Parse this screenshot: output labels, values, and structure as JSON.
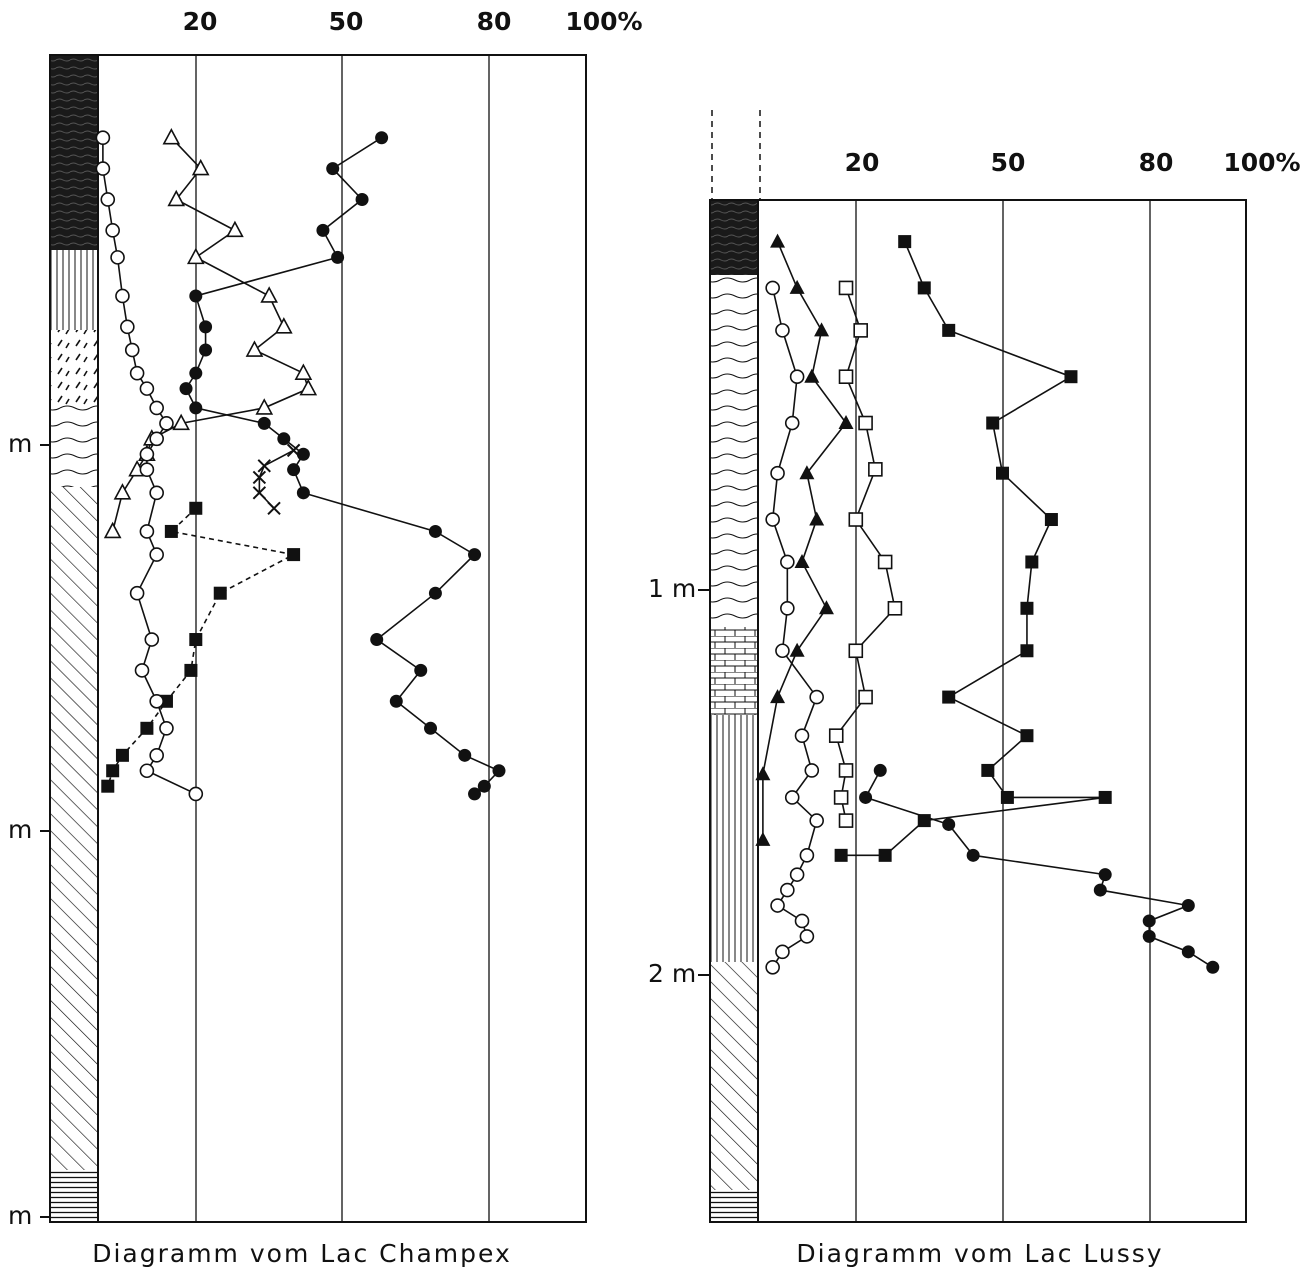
{
  "chart_data": [
    {
      "type": "line",
      "title": "Diagramm vom Lac Champex",
      "x_tick_labels": [
        "20",
        "50",
        "80",
        "100%"
      ],
      "depth_labels": [
        "m",
        "m",
        "m"
      ],
      "xlim": [
        0,
        100
      ],
      "grid": true,
      "series": [
        {
          "style": "filled-circle",
          "line": "solid",
          "points": [
            [
              58,
              0.02
            ],
            [
              48,
              0.1
            ],
            [
              54,
              0.18
            ],
            [
              46,
              0.26
            ],
            [
              49,
              0.33
            ],
            [
              20,
              0.43
            ],
            [
              22,
              0.51
            ],
            [
              22,
              0.57
            ],
            [
              20,
              0.63
            ],
            [
              18,
              0.67
            ],
            [
              20,
              0.72
            ],
            [
              34,
              0.76
            ],
            [
              38,
              0.8
            ],
            [
              42,
              0.84
            ],
            [
              40,
              0.88
            ],
            [
              42,
              0.94
            ],
            [
              69,
              1.04
            ],
            [
              77,
              1.1
            ],
            [
              69,
              1.2
            ],
            [
              57,
              1.32
            ],
            [
              66,
              1.4
            ],
            [
              61,
              1.48
            ],
            [
              68,
              1.55
            ],
            [
              75,
              1.62
            ],
            [
              82,
              1.66
            ],
            [
              79,
              1.7
            ],
            [
              77,
              1.72
            ]
          ]
        },
        {
          "style": "open-triangle",
          "line": "solid",
          "points": [
            [
              15,
              0.02
            ],
            [
              21,
              0.1
            ],
            [
              16,
              0.18
            ],
            [
              28,
              0.26
            ],
            [
              20,
              0.33
            ],
            [
              35,
              0.43
            ],
            [
              38,
              0.51
            ],
            [
              32,
              0.57
            ],
            [
              42,
              0.63
            ],
            [
              43,
              0.67
            ],
            [
              34,
              0.72
            ],
            [
              17,
              0.76
            ],
            [
              11,
              0.8
            ],
            [
              10,
              0.84
            ],
            [
              8,
              0.88
            ],
            [
              5,
              0.94
            ],
            [
              3,
              1.04
            ]
          ]
        },
        {
          "style": "cross",
          "line": "solid",
          "points": [
            [
              40,
              0.83
            ],
            [
              34,
              0.87
            ],
            [
              33,
              0.9
            ],
            [
              33,
              0.94
            ],
            [
              36,
              0.98
            ]
          ]
        },
        {
          "style": "filled-square",
          "line": "dashed",
          "points": [
            [
              20,
              0.98
            ],
            [
              15,
              1.04
            ],
            [
              40,
              1.1
            ],
            [
              25,
              1.2
            ],
            [
              20,
              1.32
            ],
            [
              19,
              1.4
            ],
            [
              14,
              1.48
            ],
            [
              10,
              1.55
            ],
            [
              5,
              1.62
            ],
            [
              3,
              1.66
            ],
            [
              2,
              1.7
            ]
          ]
        },
        {
          "style": "open-circle",
          "line": "solid",
          "points": [
            [
              1,
              0.02
            ],
            [
              1,
              0.1
            ],
            [
              2,
              0.18
            ],
            [
              3,
              0.26
            ],
            [
              4,
              0.33
            ],
            [
              5,
              0.43
            ],
            [
              6,
              0.51
            ],
            [
              7,
              0.57
            ],
            [
              8,
              0.63
            ],
            [
              10,
              0.67
            ],
            [
              12,
              0.72
            ],
            [
              14,
              0.76
            ],
            [
              12,
              0.8
            ],
            [
              10,
              0.84
            ],
            [
              10,
              0.88
            ],
            [
              12,
              0.94
            ],
            [
              10,
              1.04
            ],
            [
              12,
              1.1
            ],
            [
              8,
              1.2
            ],
            [
              11,
              1.32
            ],
            [
              9,
              1.4
            ],
            [
              12,
              1.48
            ],
            [
              14,
              1.55
            ],
            [
              12,
              1.62
            ],
            [
              10,
              1.66
            ],
            [
              20,
              1.72
            ]
          ]
        }
      ]
    },
    {
      "type": "line",
      "title": "Diagramm vom Lac Lussy",
      "x_tick_labels": [
        "20",
        "50",
        "80",
        "100%"
      ],
      "depth_labels": [
        "1 m",
        "2 m"
      ],
      "xlim": [
        0,
        100
      ],
      "grid": true,
      "series": [
        {
          "style": "filled-square",
          "line": "solid",
          "points": [
            [
              30,
              0.1
            ],
            [
              34,
              0.22
            ],
            [
              39,
              0.33
            ],
            [
              64,
              0.45
            ],
            [
              48,
              0.57
            ],
            [
              50,
              0.7
            ],
            [
              60,
              0.82
            ],
            [
              56,
              0.93
            ],
            [
              55,
              1.05
            ],
            [
              55,
              1.16
            ],
            [
              39,
              1.28
            ],
            [
              55,
              1.38
            ],
            [
              47,
              1.47
            ],
            [
              51,
              1.54
            ],
            [
              71,
              1.54
            ],
            [
              34,
              1.6
            ],
            [
              26,
              1.69
            ],
            [
              17,
              1.69
            ]
          ]
        },
        {
          "style": "filled-circle",
          "line": "solid",
          "points": [
            [
              25,
              1.47
            ],
            [
              22,
              1.54
            ],
            [
              39,
              1.61
            ],
            [
              44,
              1.69
            ],
            [
              71,
              1.74
            ],
            [
              70,
              1.78
            ],
            [
              88,
              1.82
            ],
            [
              80,
              1.86
            ],
            [
              80,
              1.9
            ],
            [
              88,
              1.94
            ],
            [
              93,
              1.98
            ]
          ]
        },
        {
          "style": "open-square",
          "line": "solid",
          "points": [
            [
              18,
              0.22
            ],
            [
              21,
              0.33
            ],
            [
              18,
              0.45
            ],
            [
              22,
              0.57
            ],
            [
              24,
              0.69
            ],
            [
              20,
              0.82
            ],
            [
              26,
              0.93
            ],
            [
              28,
              1.05
            ],
            [
              20,
              1.16
            ],
            [
              22,
              1.28
            ],
            [
              16,
              1.38
            ],
            [
              18,
              1.47
            ],
            [
              17,
              1.54
            ],
            [
              18,
              1.6
            ]
          ]
        },
        {
          "style": "open-circle",
          "line": "solid",
          "points": [
            [
              3,
              0.22
            ],
            [
              5,
              0.33
            ],
            [
              8,
              0.45
            ],
            [
              7,
              0.57
            ],
            [
              4,
              0.7
            ],
            [
              3,
              0.82
            ],
            [
              6,
              0.93
            ],
            [
              6,
              1.05
            ],
            [
              5,
              1.16
            ],
            [
              12,
              1.28
            ],
            [
              9,
              1.38
            ],
            [
              11,
              1.47
            ],
            [
              7,
              1.54
            ],
            [
              12,
              1.6
            ],
            [
              10,
              1.69
            ],
            [
              8,
              1.74
            ],
            [
              6,
              1.78
            ],
            [
              4,
              1.82
            ],
            [
              9,
              1.86
            ],
            [
              10,
              1.9
            ],
            [
              5,
              1.94
            ],
            [
              3,
              1.98
            ]
          ]
        },
        {
          "style": "filled-triangle",
          "line": "solid",
          "points": [
            [
              4,
              0.1
            ],
            [
              8,
              0.22
            ],
            [
              13,
              0.33
            ],
            [
              11,
              0.45
            ],
            [
              18,
              0.57
            ],
            [
              10,
              0.7
            ],
            [
              12,
              0.82
            ],
            [
              9,
              0.93
            ],
            [
              14,
              1.05
            ],
            [
              8,
              1.16
            ],
            [
              4,
              1.28
            ],
            [
              1,
              1.48
            ],
            [
              1,
              1.65
            ]
          ]
        }
      ]
    }
  ]
}
